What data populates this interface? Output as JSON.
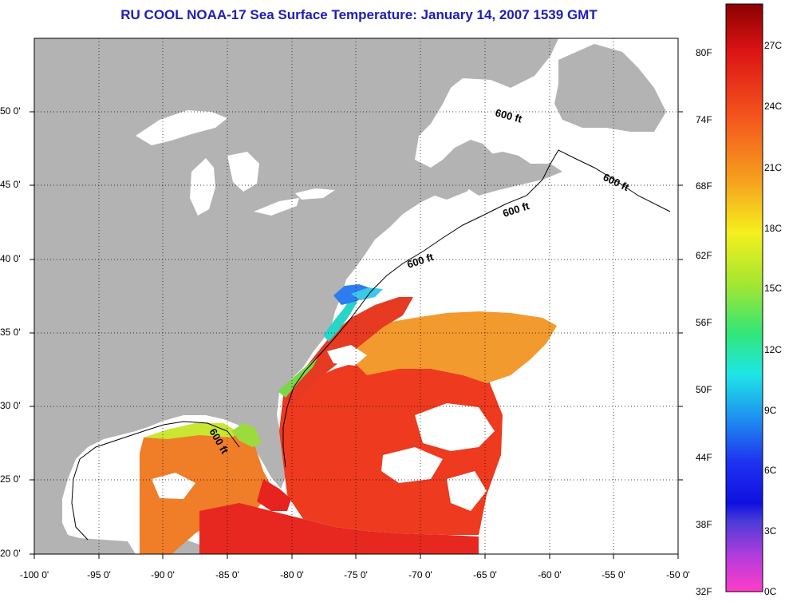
{
  "title": "RU COOL  NOAA-17  Sea Surface Temperature:  January 14, 2007 1539 GMT",
  "map": {
    "x_ticks": [
      "-100 0'",
      "-95 0'",
      "-90 0'",
      "-85 0'",
      "-80 0'",
      "-75 0'",
      "-70 0'",
      "-65 0'",
      "-60 0'",
      "-55 0'",
      "-50 0'"
    ],
    "y_ticks": [
      "50 0'",
      "45 0'",
      "40 0'",
      "35 0'",
      "30 0'",
      "25 0'",
      "20 0'"
    ],
    "contour_labels": [
      "600 ft",
      "600 ft",
      "600 ft",
      "600 ft",
      "600 ft"
    ],
    "colors": {
      "land": "#b3b3b3",
      "ocean_nodata": "#ffffff",
      "grid": "#000000"
    }
  },
  "colorbar": {
    "fahrenheit_labels": [
      "80F",
      "74F",
      "68F",
      "62F",
      "56F",
      "50F",
      "44F",
      "38F",
      "32F"
    ],
    "celsius_labels": [
      "27C",
      "24C",
      "21C",
      "18C",
      "15C",
      "12C",
      "9C",
      "6C",
      "3C",
      "0C"
    ]
  }
}
